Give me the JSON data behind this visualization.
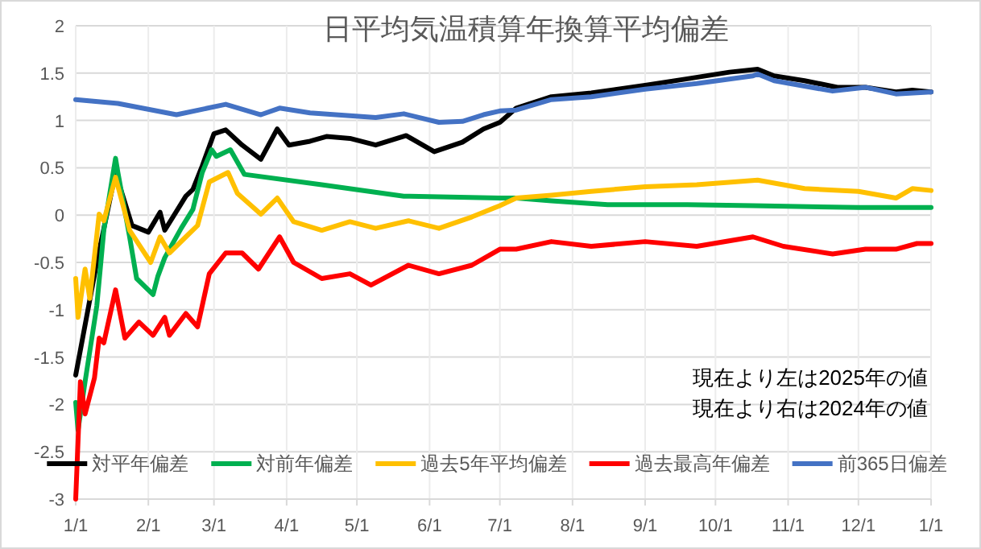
{
  "chart_data": {
    "type": "line",
    "title": "日平均気温積算年換算平均偏差",
    "xlim": [
      "2025-01-01",
      "2026-01-01"
    ],
    "xticks": [
      {
        "value": "2025-01-01",
        "label": "1/1"
      },
      {
        "value": "2025-02-01",
        "label": "2/1"
      },
      {
        "value": "2025-03-01",
        "label": "3/1"
      },
      {
        "value": "2025-04-01",
        "label": "4/1"
      },
      {
        "value": "2025-05-01",
        "label": "5/1"
      },
      {
        "value": "2025-06-01",
        "label": "6/1"
      },
      {
        "value": "2025-07-01",
        "label": "7/1"
      },
      {
        "value": "2025-08-01",
        "label": "8/1"
      },
      {
        "value": "2025-09-01",
        "label": "9/1"
      },
      {
        "value": "2025-10-01",
        "label": "10/1"
      },
      {
        "value": "2025-11-01",
        "label": "11/1"
      },
      {
        "value": "2025-12-01",
        "label": "12/1"
      },
      {
        "value": "2026-01-01",
        "label": "1/1"
      }
    ],
    "ylim": [
      -3,
      2
    ],
    "yticks": [
      -3,
      -2.5,
      -2,
      -1.5,
      -1,
      -0.5,
      0,
      0.5,
      1,
      1.5,
      2
    ],
    "grid": true,
    "legend": "bottom",
    "marker": "none",
    "line_style": "solid",
    "annotations": [
      "現在より左は2025年の値",
      "現在より右は2024年の値"
    ],
    "series": [
      {
        "name": "対平年偏差",
        "color": "#000000",
        "x": [
          "2025-01-01",
          "2025-01-10",
          "2025-01-18",
          "2025-01-25",
          "2025-02-01",
          "2025-02-06",
          "2025-02-08",
          "2025-02-17",
          "2025-02-20",
          "2025-02-24",
          "2025-03-01",
          "2025-03-06",
          "2025-03-13",
          "2025-03-21",
          "2025-03-28",
          "2025-04-02",
          "2025-04-11",
          "2025-04-18",
          "2025-04-28",
          "2025-05-09",
          "2025-05-22",
          "2025-06-03",
          "2025-06-15",
          "2025-06-24",
          "2025-07-01",
          "2025-07-08",
          "2025-07-23",
          "2025-08-09",
          "2025-09-01",
          "2025-09-19",
          "2025-10-07",
          "2025-10-19",
          "2025-10-26",
          "2025-11-08",
          "2025-11-22",
          "2025-12-04",
          "2025-12-17",
          "2025-12-24",
          "2026-01-01"
        ],
        "values": [
          -1.69,
          -0.5,
          0.45,
          -0.11,
          -0.18,
          0.03,
          -0.16,
          0.2,
          0.27,
          0.52,
          0.86,
          0.9,
          0.74,
          0.59,
          0.91,
          0.74,
          0.78,
          0.83,
          0.81,
          0.74,
          0.84,
          0.67,
          0.77,
          0.91,
          0.98,
          1.13,
          1.25,
          1.29,
          1.37,
          1.44,
          1.51,
          1.54,
          1.47,
          1.42,
          1.35,
          1.35,
          1.3,
          1.32,
          1.3
        ]
      },
      {
        "name": "対前年偏差",
        "color": "#00b050",
        "x": [
          "2025-01-01",
          "2025-01-02",
          "2025-01-05",
          "2025-01-10",
          "2025-01-13",
          "2025-01-18",
          "2025-01-19",
          "2025-01-24",
          "2025-01-27",
          "2025-02-03",
          "2025-02-05",
          "2025-02-08",
          "2025-02-15",
          "2025-02-20",
          "2025-02-24",
          "2025-02-28",
          "2025-03-02",
          "2025-03-08",
          "2025-03-14",
          "2025-04-16",
          "2025-05-21",
          "2025-07-01",
          "2025-07-08",
          "2025-07-23",
          "2025-08-16",
          "2025-09-19",
          "2025-10-17",
          "2025-12-01",
          "2026-01-01"
        ],
        "values": [
          -1.98,
          -2.27,
          -1.76,
          -0.96,
          -0.16,
          0.6,
          0.45,
          -0.23,
          -0.67,
          -0.84,
          -0.65,
          -0.45,
          -0.14,
          0.06,
          0.45,
          0.69,
          0.62,
          0.69,
          0.43,
          0.32,
          0.2,
          0.18,
          0.18,
          0.15,
          0.11,
          0.11,
          0.1,
          0.08,
          0.08
        ]
      },
      {
        "name": "過去5年平均偏差",
        "color": "#ffc000",
        "x": [
          "2025-01-01",
          "2025-01-02",
          "2025-01-05",
          "2025-01-07",
          "2025-01-11",
          "2025-01-13",
          "2025-01-18",
          "2025-01-24",
          "2025-02-02",
          "2025-02-06",
          "2025-02-10",
          "2025-02-17",
          "2025-02-22",
          "2025-02-27",
          "2025-03-07",
          "2025-03-11",
          "2025-03-21",
          "2025-03-28",
          "2025-04-04",
          "2025-04-16",
          "2025-04-28",
          "2025-05-09",
          "2025-05-23",
          "2025-06-05",
          "2025-06-19",
          "2025-07-01",
          "2025-07-08",
          "2025-07-23",
          "2025-08-09",
          "2025-09-01",
          "2025-09-23",
          "2025-10-19",
          "2025-11-08",
          "2025-12-01",
          "2025-12-17",
          "2025-12-24",
          "2026-01-01"
        ],
        "values": [
          -0.67,
          -1.08,
          -0.57,
          -0.88,
          0.01,
          -0.06,
          0.4,
          -0.16,
          -0.5,
          -0.23,
          -0.4,
          -0.23,
          -0.11,
          0.35,
          0.45,
          0.23,
          0.01,
          0.18,
          -0.07,
          -0.16,
          -0.07,
          -0.14,
          -0.06,
          -0.14,
          -0.02,
          0.1,
          0.18,
          0.21,
          0.25,
          0.3,
          0.32,
          0.37,
          0.28,
          0.25,
          0.18,
          0.28,
          0.26
        ]
      },
      {
        "name": "過去最高年偏差",
        "color": "#ff0000",
        "x": [
          "2025-01-01",
          "2025-01-03",
          "2025-01-05",
          "2025-01-09",
          "2025-01-11",
          "2025-01-13",
          "2025-01-18",
          "2025-01-22",
          "2025-01-28",
          "2025-02-03",
          "2025-02-08",
          "2025-02-10",
          "2025-02-17",
          "2025-02-22",
          "2025-02-27",
          "2025-03-06",
          "2025-03-13",
          "2025-03-20",
          "2025-03-29",
          "2025-04-04",
          "2025-04-16",
          "2025-04-28",
          "2025-05-07",
          "2025-05-23",
          "2025-06-05",
          "2025-06-19",
          "2025-07-01",
          "2025-07-08",
          "2025-07-23",
          "2025-08-09",
          "2025-09-01",
          "2025-09-23",
          "2025-10-17",
          "2025-10-30",
          "2025-11-20",
          "2025-12-04",
          "2025-12-17",
          "2025-12-26",
          "2026-01-01"
        ],
        "values": [
          -3,
          -1.76,
          -2.1,
          -1.72,
          -1.3,
          -1.35,
          -0.79,
          -1.3,
          -1.13,
          -1.27,
          -1.08,
          -1.27,
          -1.04,
          -1.18,
          -0.62,
          -0.4,
          -0.4,
          -0.57,
          -0.23,
          -0.5,
          -0.67,
          -0.62,
          -0.74,
          -0.53,
          -0.62,
          -0.53,
          -0.36,
          -0.36,
          -0.28,
          -0.33,
          -0.28,
          -0.33,
          -0.23,
          -0.33,
          -0.41,
          -0.36,
          -0.36,
          -0.3,
          -0.3
        ]
      },
      {
        "name": "前365日偏差",
        "color": "#4472c4",
        "x": [
          "2025-01-01",
          "2025-01-19",
          "2025-02-13",
          "2025-03-06",
          "2025-03-21",
          "2025-03-29",
          "2025-04-11",
          "2025-05-09",
          "2025-05-21",
          "2025-06-05",
          "2025-06-15",
          "2025-06-24",
          "2025-07-01",
          "2025-07-08",
          "2025-07-23",
          "2025-08-09",
          "2025-09-01",
          "2025-09-23",
          "2025-10-17",
          "2025-10-19",
          "2025-10-26",
          "2025-11-20",
          "2025-12-04",
          "2025-12-17",
          "2026-01-01"
        ],
        "values": [
          1.22,
          1.18,
          1.06,
          1.17,
          1.06,
          1.13,
          1.08,
          1.03,
          1.07,
          0.98,
          0.99,
          1.06,
          1.1,
          1.11,
          1.22,
          1.25,
          1.33,
          1.39,
          1.47,
          1.49,
          1.42,
          1.31,
          1.35,
          1.28,
          1.3
        ]
      }
    ]
  }
}
